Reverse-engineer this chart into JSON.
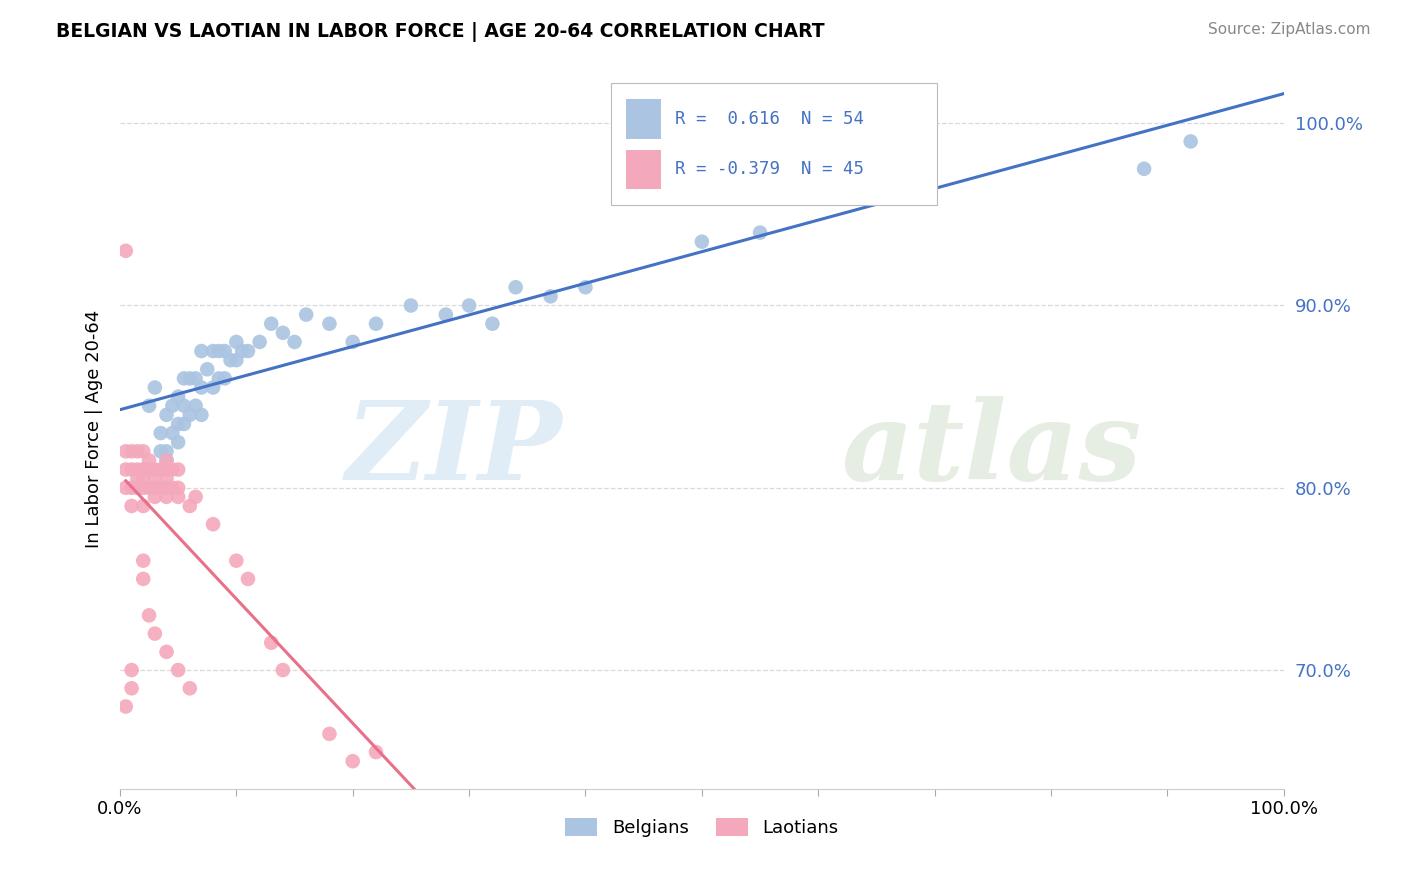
{
  "title": "BELGIAN VS LAOTIAN IN LABOR FORCE | AGE 20-64 CORRELATION CHART",
  "source": "Source: ZipAtlas.com",
  "ylabel": "In Labor Force | Age 20-64",
  "xlim": [
    0.0,
    1.0
  ],
  "ylim": [
    0.635,
    1.03
  ],
  "legend_r_belgian": "0.616",
  "legend_n_belgian": "54",
  "legend_r_laotian": "-0.379",
  "legend_n_laotian": "45",
  "belgian_color": "#aac4e2",
  "laotian_color": "#f4a8bb",
  "belgian_line_color": "#4472c4",
  "laotian_line_color": "#e8708a",
  "belgian_x": [
    0.02,
    0.025,
    0.03,
    0.035,
    0.035,
    0.04,
    0.04,
    0.04,
    0.045,
    0.045,
    0.05,
    0.05,
    0.05,
    0.055,
    0.055,
    0.055,
    0.06,
    0.06,
    0.065,
    0.065,
    0.07,
    0.07,
    0.07,
    0.075,
    0.08,
    0.08,
    0.085,
    0.085,
    0.09,
    0.09,
    0.095,
    0.1,
    0.1,
    0.105,
    0.11,
    0.12,
    0.13,
    0.14,
    0.15,
    0.16,
    0.18,
    0.2,
    0.22,
    0.25,
    0.28,
    0.3,
    0.32,
    0.34,
    0.37,
    0.4,
    0.5,
    0.55,
    0.88,
    0.92
  ],
  "belgian_y": [
    0.81,
    0.845,
    0.855,
    0.82,
    0.83,
    0.815,
    0.82,
    0.84,
    0.83,
    0.845,
    0.825,
    0.835,
    0.85,
    0.835,
    0.845,
    0.86,
    0.84,
    0.86,
    0.845,
    0.86,
    0.84,
    0.855,
    0.875,
    0.865,
    0.855,
    0.875,
    0.86,
    0.875,
    0.86,
    0.875,
    0.87,
    0.87,
    0.88,
    0.875,
    0.875,
    0.88,
    0.89,
    0.885,
    0.88,
    0.895,
    0.89,
    0.88,
    0.89,
    0.9,
    0.895,
    0.9,
    0.89,
    0.91,
    0.905,
    0.91,
    0.935,
    0.94,
    0.975,
    0.99
  ],
  "laotian_x": [
    0.005,
    0.005,
    0.005,
    0.01,
    0.01,
    0.01,
    0.01,
    0.015,
    0.015,
    0.015,
    0.015,
    0.02,
    0.02,
    0.02,
    0.02,
    0.02,
    0.025,
    0.025,
    0.025,
    0.03,
    0.03,
    0.03,
    0.03,
    0.035,
    0.035,
    0.04,
    0.04,
    0.04,
    0.04,
    0.04,
    0.045,
    0.045,
    0.05,
    0.05,
    0.05,
    0.06,
    0.065,
    0.08,
    0.1,
    0.11,
    0.13,
    0.14,
    0.18,
    0.2,
    0.22
  ],
  "laotian_y": [
    0.8,
    0.81,
    0.82,
    0.79,
    0.8,
    0.81,
    0.82,
    0.8,
    0.805,
    0.81,
    0.82,
    0.79,
    0.8,
    0.805,
    0.81,
    0.82,
    0.8,
    0.81,
    0.815,
    0.795,
    0.8,
    0.805,
    0.81,
    0.8,
    0.81,
    0.795,
    0.8,
    0.805,
    0.81,
    0.815,
    0.8,
    0.81,
    0.795,
    0.8,
    0.81,
    0.79,
    0.795,
    0.78,
    0.76,
    0.75,
    0.715,
    0.7,
    0.665,
    0.65,
    0.655
  ],
  "laotian_scatter_extra": [
    [
      0.005,
      0.93
    ],
    [
      0.005,
      0.68
    ],
    [
      0.01,
      0.69
    ],
    [
      0.01,
      0.7
    ],
    [
      0.02,
      0.75
    ],
    [
      0.02,
      0.76
    ],
    [
      0.025,
      0.73
    ],
    [
      0.03,
      0.72
    ],
    [
      0.04,
      0.71
    ],
    [
      0.05,
      0.7
    ],
    [
      0.06,
      0.69
    ]
  ],
  "grid_color": "#d0d0d0",
  "background_color": "#ffffff"
}
